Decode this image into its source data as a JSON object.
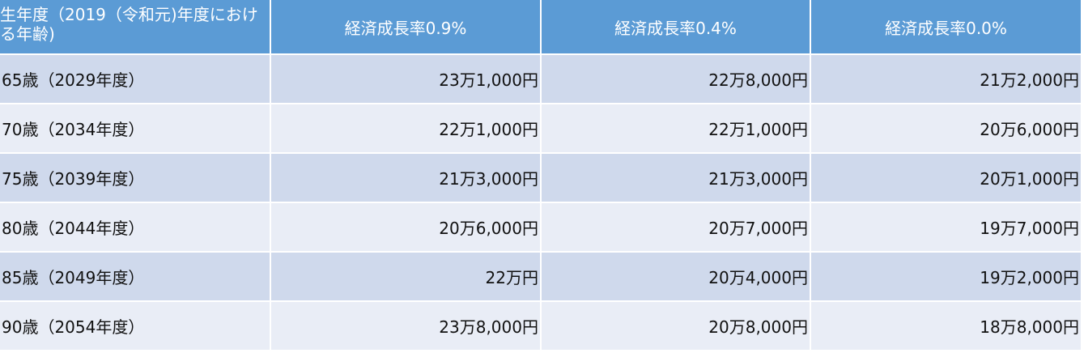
{
  "table": {
    "header": [
      "生年度（2019（令和元)年度における年齢)",
      "経済成長率0.9%",
      "経済成長率0.4%",
      "経済成長率0.0%"
    ],
    "rows": [
      [
        "65歳（2029年度）",
        "23万1,000円",
        "22万8,000円",
        "21万2,000円"
      ],
      [
        "70歳（2034年度）",
        "22万1,000円",
        "22万1,000円",
        "20万6,000円"
      ],
      [
        "75歳（2039年度）",
        "21万3,000円",
        "21万3,000円",
        "20万1,000円"
      ],
      [
        "80歳（2044年度）",
        "20万6,000円",
        "20万7,000円",
        "19万7,000円"
      ],
      [
        "85歳（2049年度）",
        "22万円",
        "20万4,000円",
        "19万2,000円"
      ],
      [
        "90歳（2054年度）",
        "23万8,000円",
        "20万8,000円",
        "18万8,000円"
      ]
    ]
  }
}
